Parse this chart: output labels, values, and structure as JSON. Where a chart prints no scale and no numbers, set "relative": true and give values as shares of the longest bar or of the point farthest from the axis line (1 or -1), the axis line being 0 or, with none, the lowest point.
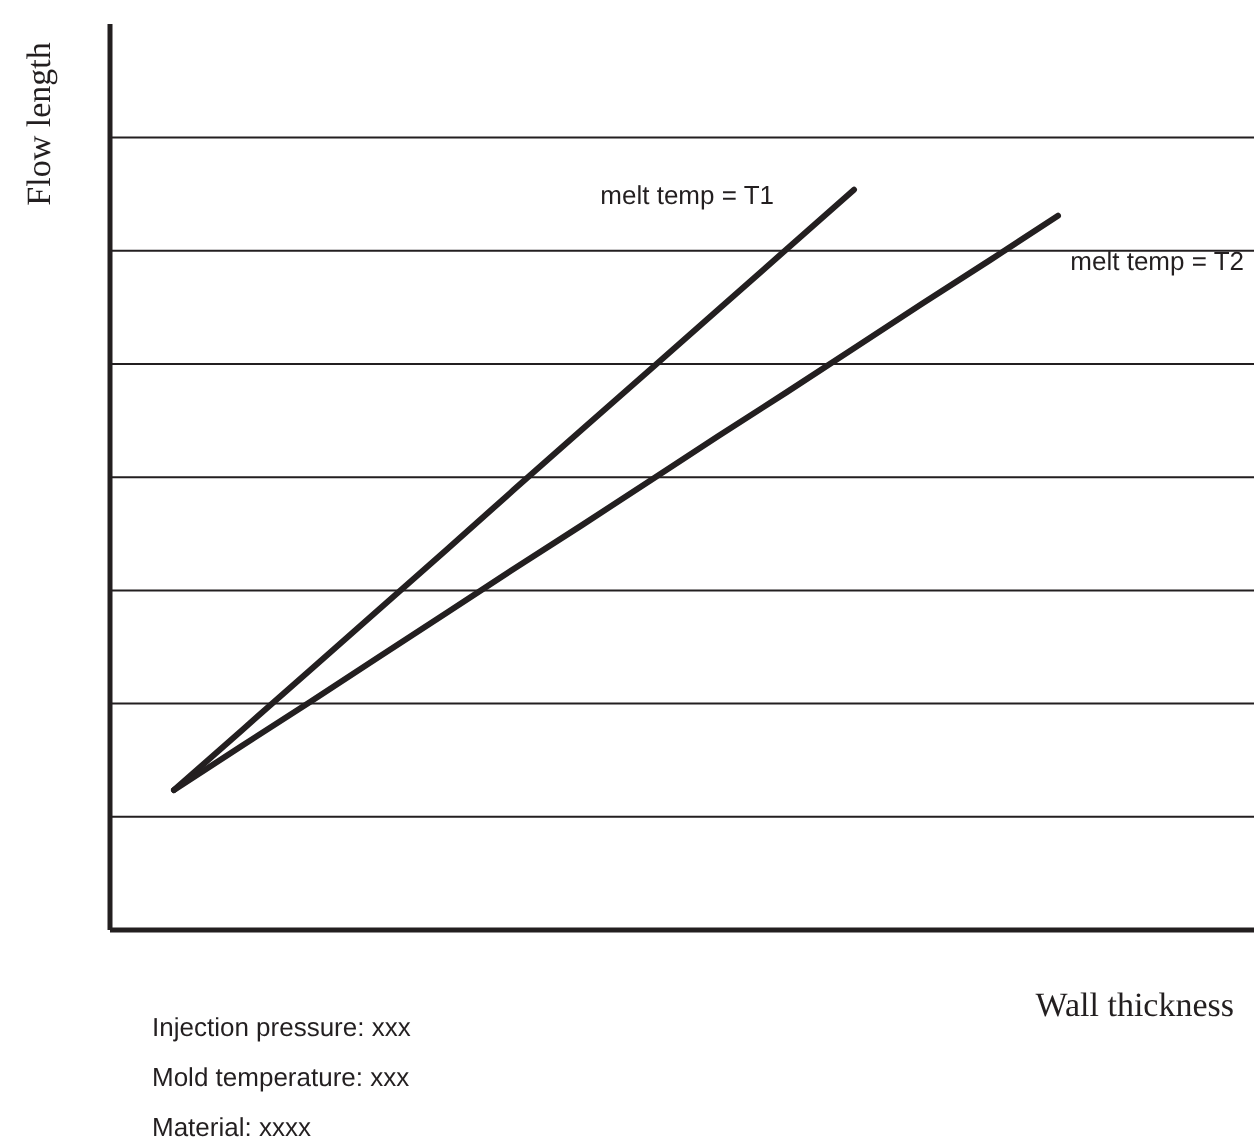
{
  "chart_data": {
    "type": "line",
    "relative": true,
    "xlabel": "Wall thickness",
    "ylabel": "Flow length",
    "grid": "y",
    "line_style": "solid",
    "marker": "none",
    "categories": [
      null,
      null,
      null,
      null,
      null,
      null,
      null,
      null,
      null,
      null,
      null,
      null,
      null,
      null
    ],
    "series": [
      {
        "name": "melt temp = T1",
        "color": "#231f20",
        "values": [
          0.189,
          0.27,
          0.351,
          0.432,
          0.513,
          0.595,
          0.676,
          0.757,
          0.838,
          0.919,
          1.0,
          null,
          null,
          null
        ]
      },
      {
        "name": "melt temp = T2",
        "color": "#231f20",
        "values": [
          0.189,
          0.249,
          0.308,
          0.368,
          0.428,
          0.488,
          0.547,
          0.607,
          0.667,
          0.726,
          0.786,
          0.846,
          0.905,
          0.965
        ]
      }
    ],
    "annotations": [
      "Injection pressure: xxx",
      "Mold temperature: xxx",
      "Material: xxxx"
    ]
  }
}
